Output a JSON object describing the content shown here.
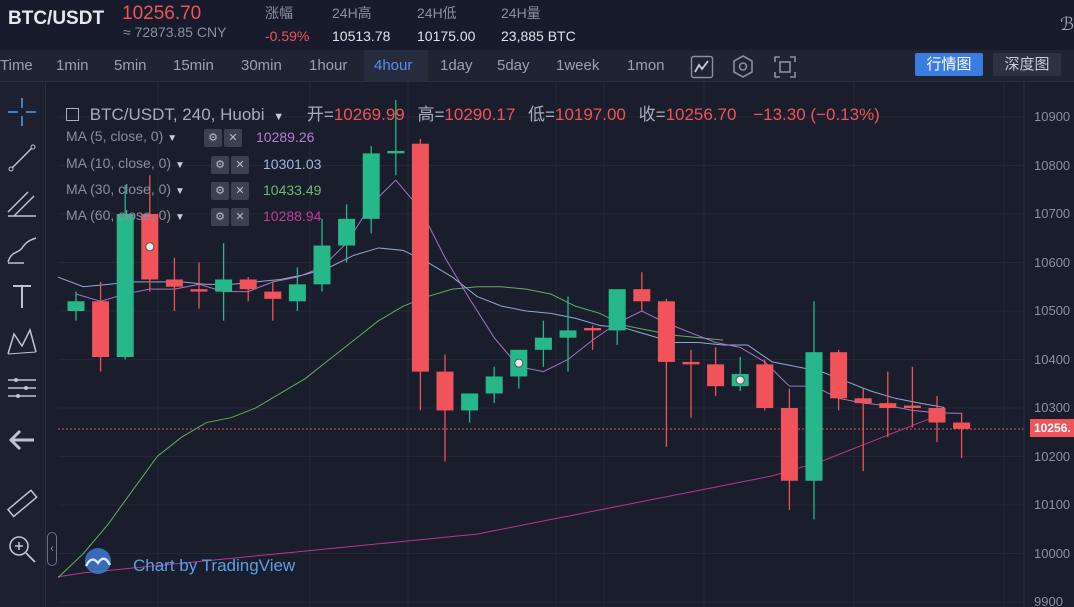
{
  "header": {
    "pair": "BTC/USDT",
    "last_price": "10256.70",
    "cny_price": "≈ 72873.85 CNY",
    "stats": [
      {
        "label": "涨幅",
        "value": "-0.59%",
        "negative": true
      },
      {
        "label": "24H高",
        "value": "10513.78",
        "negative": false
      },
      {
        "label": "24H低",
        "value": "10175.00",
        "negative": false
      },
      {
        "label": "24H量",
        "value": "23,885 BTC",
        "negative": false
      }
    ],
    "corner_icon": "ℬ"
  },
  "toolbar": {
    "timeframes": [
      "Time",
      "1min",
      "5min",
      "15min",
      "30min",
      "1hour",
      "4hour",
      "1day",
      "5day",
      "1week",
      "1mon"
    ],
    "active_timeframe": "4hour",
    "icons": [
      "line-chart-icon",
      "hexagon-settings-icon",
      "screenshot-icon"
    ],
    "quote_button": "行情图",
    "depth_button": "深度图"
  },
  "rail_icons": [
    "crosshair-icon",
    "trendline-icon",
    "fib-icon",
    "brush-icon",
    "text-icon",
    "pattern-icon",
    "measure-lines-icon",
    "back-arrow-icon",
    "ruler-icon",
    "zoom-in-icon"
  ],
  "legend": {
    "symbol": "BTC/USDT, 240, Huobi",
    "open_label": "开=",
    "open": "10269.99",
    "high_label": "高=",
    "high": "10290.17",
    "low_label": "低=",
    "low": "10197.00",
    "close_label": "收=",
    "close": "10256.70",
    "change": "−13.30 (−0.13%)"
  },
  "moving_averages": [
    {
      "label": "MA (5, close, 0)",
      "value": "10289.26",
      "color": "#b27fd6"
    },
    {
      "label": "MA (10, close, 0)",
      "value": "10301.03",
      "color": "#9fb6e6"
    },
    {
      "label": "MA (30, close, 0)",
      "value": "10433.49",
      "color": "#6dbb6e"
    },
    {
      "label": "MA (60, close, 0)",
      "value": "10288.94",
      "color": "#c43c9a"
    }
  ],
  "watermark": "Chart by TradingView",
  "current_price_tag": "10256.",
  "chart_data": {
    "type": "candlestick",
    "y_ticks": [
      "10900",
      "10800",
      "10700",
      "10600",
      "10500",
      "10400",
      "10300",
      "10200",
      "10100",
      "10000",
      "9900"
    ],
    "y_tick_values": [
      10900,
      10800,
      10700,
      10600,
      10500,
      10400,
      10300,
      10200,
      10100,
      10000,
      9900
    ],
    "ylim": [
      9895,
      10935
    ],
    "candles": [
      {
        "o": 10500,
        "h": 10540,
        "l": 10480,
        "c": 10520
      },
      {
        "o": 10520,
        "h": 10560,
        "l": 10375,
        "c": 10405
      },
      {
        "o": 10405,
        "h": 10760,
        "l": 10400,
        "c": 10700
      },
      {
        "o": 10700,
        "h": 10780,
        "l": 10540,
        "c": 10565
      },
      {
        "o": 10565,
        "h": 10610,
        "l": 10500,
        "c": 10550
      },
      {
        "o": 10545,
        "h": 10600,
        "l": 10505,
        "c": 10540
      },
      {
        "o": 10540,
        "h": 10640,
        "l": 10480,
        "c": 10565
      },
      {
        "o": 10565,
        "h": 10570,
        "l": 10520,
        "c": 10545
      },
      {
        "o": 10540,
        "h": 10560,
        "l": 10480,
        "c": 10525
      },
      {
        "o": 10520,
        "h": 10590,
        "l": 10500,
        "c": 10555
      },
      {
        "o": 10555,
        "h": 10690,
        "l": 10540,
        "c": 10635
      },
      {
        "o": 10635,
        "h": 10720,
        "l": 10600,
        "c": 10690
      },
      {
        "o": 10690,
        "h": 10840,
        "l": 10660,
        "c": 10825
      },
      {
        "o": 10825,
        "h": 10935,
        "l": 10780,
        "c": 10830
      },
      {
        "o": 10845,
        "h": 10855,
        "l": 10295,
        "c": 10375
      },
      {
        "o": 10375,
        "h": 10410,
        "l": 10190,
        "c": 10295
      },
      {
        "o": 10295,
        "h": 10320,
        "l": 10270,
        "c": 10330
      },
      {
        "o": 10330,
        "h": 10385,
        "l": 10310,
        "c": 10365
      },
      {
        "o": 10365,
        "h": 10420,
        "l": 10340,
        "c": 10420
      },
      {
        "o": 10420,
        "h": 10480,
        "l": 10385,
        "c": 10445
      },
      {
        "o": 10445,
        "h": 10530,
        "l": 10375,
        "c": 10460
      },
      {
        "o": 10465,
        "h": 10470,
        "l": 10420,
        "c": 10460
      },
      {
        "o": 10460,
        "h": 10540,
        "l": 10430,
        "c": 10545
      },
      {
        "o": 10545,
        "h": 10580,
        "l": 10500,
        "c": 10520
      },
      {
        "o": 10520,
        "h": 10525,
        "l": 10220,
        "c": 10395
      },
      {
        "o": 10395,
        "h": 10420,
        "l": 10280,
        "c": 10390
      },
      {
        "o": 10390,
        "h": 10425,
        "l": 10325,
        "c": 10345
      },
      {
        "o": 10345,
        "h": 10405,
        "l": 10335,
        "c": 10370
      },
      {
        "o": 10390,
        "h": 10400,
        "l": 10295,
        "c": 10300
      },
      {
        "o": 10300,
        "h": 10340,
        "l": 10090,
        "c": 10150
      },
      {
        "o": 10150,
        "h": 10520,
        "l": 10070,
        "c": 10415
      },
      {
        "o": 10415,
        "h": 10420,
        "l": 10295,
        "c": 10320
      },
      {
        "o": 10320,
        "h": 10340,
        "l": 10170,
        "c": 10310
      },
      {
        "o": 10310,
        "h": 10375,
        "l": 10240,
        "c": 10300
      },
      {
        "o": 10305,
        "h": 10385,
        "l": 10260,
        "c": 10300
      },
      {
        "o": 10300,
        "h": 10325,
        "l": 10230,
        "c": 10270
      },
      {
        "o": 10270,
        "h": 10290,
        "l": 10197,
        "c": 10257
      }
    ],
    "ma5": [
      10535,
      10520,
      10535,
      10545,
      10545,
      10555,
      10540,
      10540,
      10560,
      10570,
      10590,
      10640,
      10720,
      10770,
      10710,
      10610,
      10525,
      10445,
      10385,
      10375,
      10400,
      10440,
      10475,
      10500,
      10475,
      10455,
      10435,
      10425,
      10395,
      10345,
      10345,
      10320,
      10310,
      10305,
      10295,
      10290,
      10289
    ],
    "ma10": [
      10570,
      10550,
      10555,
      10560,
      10560,
      10560,
      10555,
      10555,
      10560,
      10565,
      10575,
      10590,
      10615,
      10630,
      10625,
      10600,
      10570,
      10530,
      10510,
      10500,
      10495,
      10485,
      10470,
      10465,
      10450,
      10435,
      10435,
      10430,
      10430,
      10395,
      10385,
      10375,
      10355,
      10335,
      10320,
      10310,
      10301
    ],
    "ma30": [
      9950,
      10000,
      10060,
      10130,
      10200,
      10240,
      10270,
      10280,
      10300,
      10330,
      10360,
      10400,
      10440,
      10480,
      10510,
      10530,
      10545,
      10550,
      10550,
      10545,
      10535,
      10510,
      10495,
      10470,
      10460,
      10450,
      10445,
      10440
    ],
    "ma60": [
      9952,
      9960,
      9965,
      9970,
      9975,
      9980,
      9985,
      9990,
      9995,
      10000,
      10005,
      10010,
      10015,
      10020,
      10025,
      10030,
      10035,
      10040,
      10050,
      10060,
      10070,
      10080,
      10090,
      10100,
      10110,
      10120,
      10130,
      10140,
      10150,
      10160,
      10175,
      10190,
      10210,
      10230,
      10250,
      10270,
      10289
    ],
    "current_price": 10256.7,
    "marked_candles": [
      3,
      18,
      27
    ]
  }
}
